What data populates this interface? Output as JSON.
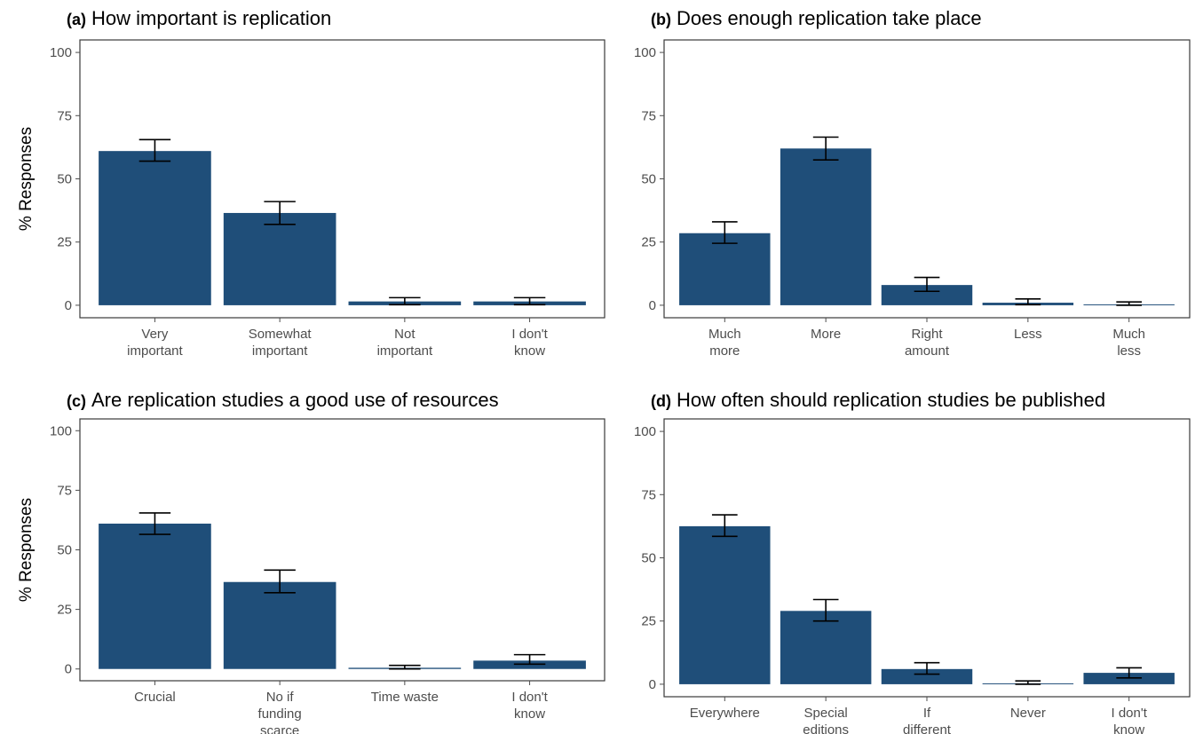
{
  "style": {
    "bar_color": "#1f4e79",
    "panel_border": "#3a3a3a",
    "tick_color": "#4d4d4d",
    "errorbar_color": "#000000"
  },
  "chart_data": [
    {
      "type": "bar",
      "tag": "(a)",
      "title": "How important is replication",
      "ylabel": "% Responses",
      "ylim": [
        0,
        100
      ],
      "yticks": [
        0,
        25,
        50,
        75,
        100
      ],
      "grid": false,
      "categories": [
        [
          "Very",
          "important"
        ],
        [
          "Somewhat",
          "important"
        ],
        [
          "Not",
          "important"
        ],
        [
          "I don't",
          "know"
        ]
      ],
      "values": [
        61,
        36.5,
        1.5,
        1.5
      ],
      "error_low": [
        57,
        32,
        0.2,
        0.2
      ],
      "error_high": [
        65.5,
        41,
        3,
        3
      ]
    },
    {
      "type": "bar",
      "tag": "(b)",
      "title": "Does enough replication take place",
      "ylabel": "",
      "ylim": [
        0,
        100
      ],
      "yticks": [
        0,
        25,
        50,
        75,
        100
      ],
      "grid": false,
      "categories": [
        [
          "Much",
          "more"
        ],
        [
          "More"
        ],
        [
          "Right",
          "amount"
        ],
        [
          "Less"
        ],
        [
          "Much",
          "less"
        ]
      ],
      "values": [
        28.5,
        62,
        8,
        1,
        0.3
      ],
      "error_low": [
        24.5,
        57.5,
        5.5,
        0.2,
        0
      ],
      "error_high": [
        33,
        66.5,
        11,
        2.5,
        1.3
      ]
    },
    {
      "type": "bar",
      "tag": "(c)",
      "title": "Are replication studies a good use of resources",
      "ylabel": "% Responses",
      "ylim": [
        0,
        100
      ],
      "yticks": [
        0,
        25,
        50,
        75,
        100
      ],
      "grid": false,
      "categories": [
        [
          "Crucial"
        ],
        [
          "No if",
          "funding",
          "scarce"
        ],
        [
          "Time waste"
        ],
        [
          "I don't",
          "know"
        ]
      ],
      "values": [
        61,
        36.5,
        0.5,
        3.5
      ],
      "error_low": [
        56.5,
        32,
        0,
        2
      ],
      "error_high": [
        65.5,
        41.5,
        1.5,
        6
      ]
    },
    {
      "type": "bar",
      "tag": "(d)",
      "title": "How often should replication studies be published",
      "ylabel": "",
      "ylim": [
        0,
        100
      ],
      "yticks": [
        0,
        25,
        50,
        75,
        100
      ],
      "grid": false,
      "categories": [
        [
          "Everywhere"
        ],
        [
          "Special",
          "editions"
        ],
        [
          "If",
          "different"
        ],
        [
          "Never"
        ],
        [
          "I don't",
          "know"
        ]
      ],
      "values": [
        62.5,
        29,
        6,
        0.3,
        4.5
      ],
      "error_low": [
        58.5,
        25,
        4,
        0,
        2.5
      ],
      "error_high": [
        67,
        33.5,
        8.5,
        1.3,
        6.5
      ]
    }
  ]
}
